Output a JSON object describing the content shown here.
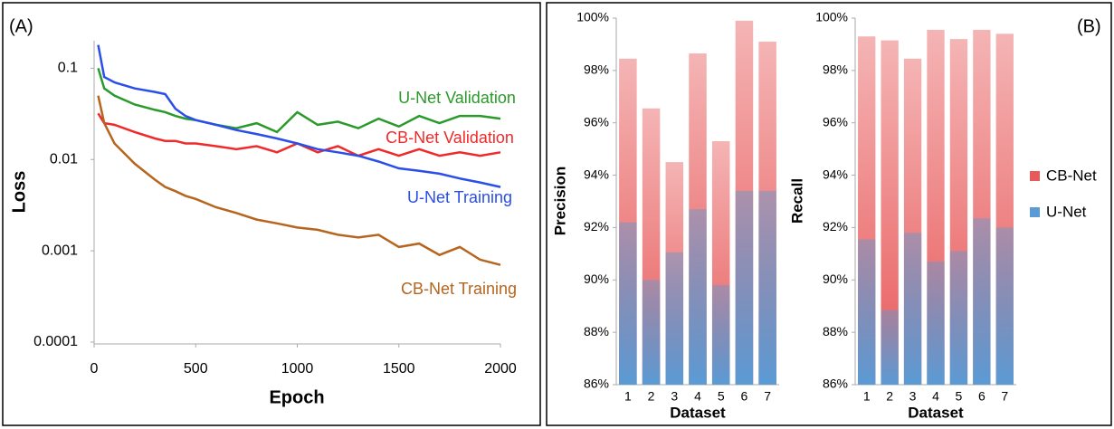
{
  "chart_data": [
    {
      "type": "line",
      "label": "(A)",
      "xlabel": "Epoch",
      "ylabel": "Loss",
      "log_y": true,
      "xlim": [
        0,
        2000
      ],
      "xticks": [
        0,
        500,
        1000,
        1500,
        2000
      ],
      "ylim": [
        0.0001,
        0.2
      ],
      "yticks": [
        0.0001,
        0.001,
        0.01,
        0.1
      ],
      "x": [
        20,
        50,
        100,
        200,
        300,
        350,
        400,
        450,
        500,
        600,
        700,
        800,
        900,
        1000,
        1100,
        1200,
        1300,
        1400,
        1500,
        1600,
        1700,
        1800,
        1900,
        2000
      ],
      "series": [
        {
          "name": "U-Net Validation",
          "color": "#2a9a2a",
          "values": [
            0.1,
            0.06,
            0.05,
            0.04,
            0.035,
            0.033,
            0.03,
            0.028,
            0.027,
            0.024,
            0.022,
            0.025,
            0.02,
            0.033,
            0.024,
            0.026,
            0.022,
            0.028,
            0.023,
            0.03,
            0.025,
            0.03,
            0.03,
            0.028
          ]
        },
        {
          "name": "CB-Net Validation",
          "color": "#f02a2a",
          "values": [
            0.032,
            0.025,
            0.024,
            0.02,
            0.017,
            0.016,
            0.016,
            0.015,
            0.015,
            0.014,
            0.013,
            0.014,
            0.012,
            0.015,
            0.012,
            0.014,
            0.011,
            0.013,
            0.011,
            0.013,
            0.011,
            0.012,
            0.011,
            0.012
          ]
        },
        {
          "name": "U-Net Training",
          "color": "#2a4ee8",
          "values": [
            0.18,
            0.08,
            0.07,
            0.06,
            0.055,
            0.052,
            0.036,
            0.03,
            0.027,
            0.024,
            0.021,
            0.019,
            0.017,
            0.015,
            0.013,
            0.012,
            0.011,
            0.0095,
            0.008,
            0.0075,
            0.007,
            0.0062,
            0.0056,
            0.005
          ]
        },
        {
          "name": "CB-Net Training",
          "color": "#b5651d",
          "values": [
            0.05,
            0.025,
            0.015,
            0.009,
            0.006,
            0.005,
            0.0045,
            0.004,
            0.0037,
            0.003,
            0.0026,
            0.0022,
            0.002,
            0.0018,
            0.0017,
            0.0015,
            0.0014,
            0.0015,
            0.0011,
            0.0012,
            0.0009,
            0.0011,
            0.0008,
            0.0007
          ]
        }
      ]
    },
    {
      "type": "bar",
      "label": "(B)",
      "xlabel": "Dataset",
      "ylabel": "Precision",
      "categories": [
        "1",
        "2",
        "3",
        "4",
        "5",
        "6",
        "7"
      ],
      "ylim": [
        86,
        100
      ],
      "yticks": [
        {
          "value": 86,
          "label": "86%"
        },
        {
          "value": 88,
          "label": "88%"
        },
        {
          "value": 90,
          "label": "90%"
        },
        {
          "value": 92,
          "label": "92%"
        },
        {
          "value": 94,
          "label": "94%"
        },
        {
          "value": 96,
          "label": "96%"
        },
        {
          "value": 98,
          "label": "98%"
        },
        {
          "value": 100,
          "label": "100%"
        }
      ],
      "series": [
        {
          "color": "#e8595a",
          "values": [
            98.45,
            96.55,
            94.5,
            98.65,
            95.3,
            99.9,
            99.1
          ]
        },
        {
          "color": "#5b9bd5",
          "values": [
            92.2,
            90.0,
            91.05,
            92.7,
            89.8,
            93.4,
            93.4
          ]
        }
      ]
    },
    {
      "type": "bar",
      "xlabel": "Dataset",
      "ylabel": "Recall",
      "categories": [
        "1",
        "2",
        "3",
        "4",
        "5",
        "6",
        "7"
      ],
      "ylim": [
        86,
        100
      ],
      "yticks": [
        {
          "value": 86,
          "label": "86%"
        },
        {
          "value": 88,
          "label": "88%"
        },
        {
          "value": 90,
          "label": "90%"
        },
        {
          "value": 92,
          "label": "92%"
        },
        {
          "value": 94,
          "label": "94%"
        },
        {
          "value": 96,
          "label": "96%"
        },
        {
          "value": 98,
          "label": "98%"
        },
        {
          "value": 100,
          "label": "100%"
        }
      ],
      "legend": "right",
      "series": [
        {
          "name": "CB-Net",
          "color": "#e8595a",
          "values": [
            99.3,
            99.15,
            98.45,
            99.55,
            99.2,
            99.55,
            99.4
          ]
        },
        {
          "name": "U-Net",
          "color": "#5b9bd5",
          "values": [
            91.55,
            88.85,
            91.8,
            90.7,
            91.1,
            92.35,
            92.0
          ]
        }
      ]
    }
  ]
}
